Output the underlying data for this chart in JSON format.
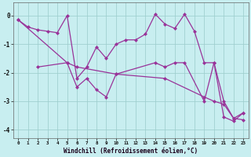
{
  "bg_color": "#c8eef0",
  "grid_color": "#9ecece",
  "line_color": "#993399",
  "xlabel": "Windchill (Refroidissement éolien,°C)",
  "xlim_min": -0.5,
  "xlim_max": 23.5,
  "ylim_min": -4.3,
  "ylim_max": 0.45,
  "xticks": [
    0,
    1,
    2,
    3,
    4,
    5,
    6,
    7,
    8,
    9,
    10,
    11,
    12,
    13,
    14,
    15,
    16,
    17,
    18,
    19,
    20,
    21,
    22,
    23
  ],
  "yticks": [
    0,
    -1,
    -2,
    -3,
    -4
  ],
  "series": [
    {
      "x": [
        0,
        1,
        2,
        3,
        4,
        5,
        6,
        7,
        8,
        9,
        10,
        11,
        12,
        13,
        14,
        15,
        16,
        17,
        18,
        19,
        20,
        21,
        22,
        23
      ],
      "y": [
        -0.15,
        -0.4,
        -0.5,
        -0.55,
        -0.6,
        0.0,
        -2.2,
        -1.8,
        -1.1,
        -1.5,
        -1.0,
        -0.85,
        -0.85,
        -0.65,
        0.05,
        -0.3,
        -0.45,
        0.05,
        -0.55,
        -1.65,
        -1.65,
        -3.0,
        -3.6,
        -3.4
      ]
    },
    {
      "x": [
        0,
        5,
        6,
        10,
        15,
        19,
        20,
        21,
        22,
        23
      ],
      "y": [
        -0.15,
        -1.65,
        -1.8,
        -2.05,
        -2.2,
        -2.85,
        -3.0,
        -3.1,
        -3.6,
        -3.65
      ]
    },
    {
      "x": [
        2,
        5,
        6,
        7,
        8,
        9,
        10,
        14,
        15,
        16,
        17,
        19,
        20,
        21,
        22,
        23
      ],
      "y": [
        -1.8,
        -1.65,
        -2.5,
        -2.2,
        -2.6,
        -2.85,
        -2.05,
        -1.65,
        -1.8,
        -1.65,
        -1.65,
        -3.0,
        -1.65,
        -3.55,
        -3.7,
        -3.4
      ]
    }
  ]
}
